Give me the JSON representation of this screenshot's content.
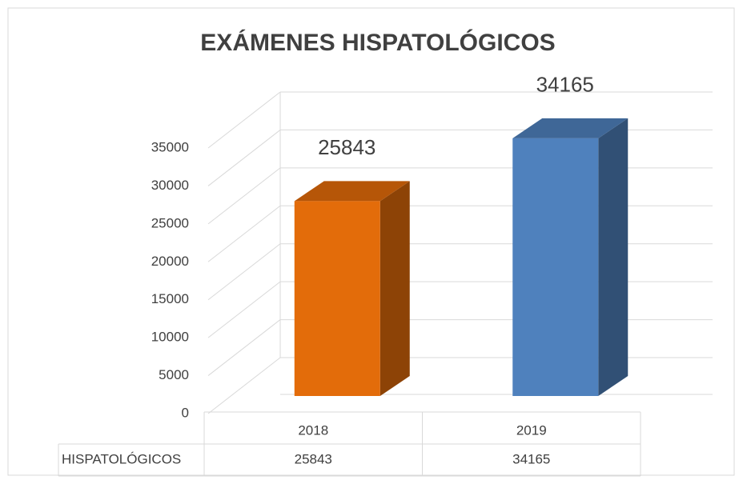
{
  "chart_data": {
    "type": "bar3d",
    "title": "EXÁMENES HISPATOLÓGICOS",
    "categories": [
      "2018",
      "2019"
    ],
    "series": [
      {
        "name": "HISPATOLÓGICOS",
        "colors": [
          "#e36c0a",
          "#4f81bd"
        ],
        "values": [
          25843,
          34165
        ]
      }
    ],
    "ylim": [
      0,
      35000
    ],
    "yticks": [
      0,
      5000,
      10000,
      15000,
      20000,
      25000,
      30000,
      35000
    ],
    "grid": true,
    "data_table": true
  }
}
